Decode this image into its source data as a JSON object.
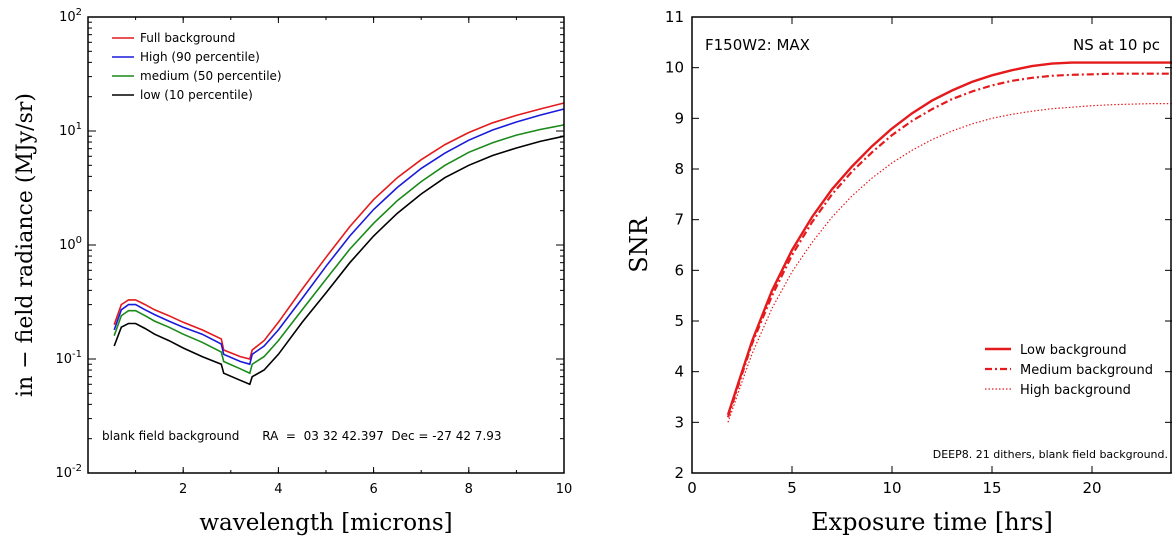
{
  "chart_data": [
    {
      "type": "line",
      "yscale": "log",
      "xlabel": "wavelength [microns]",
      "ylabel": "in − field radiance (MJy/sr)",
      "xlim": [
        0,
        10
      ],
      "ylim": [
        0.01,
        100
      ],
      "xticks": [
        "2",
        "4",
        "6",
        "8",
        "10"
      ],
      "yticks": [
        {
          "base": "10",
          "exp": "-2"
        },
        {
          "base": "10",
          "exp": "-1"
        },
        {
          "base": "10",
          "exp": "0"
        },
        {
          "base": "10",
          "exp": "1"
        },
        {
          "base": "10",
          "exp": "2"
        }
      ],
      "legend_position": "top-left",
      "annotation": "blank field background      RA  =  03 32 42.397  Dec = -27 42 7.93",
      "x": [
        0.55,
        0.7,
        0.85,
        1.0,
        1.2,
        1.4,
        1.7,
        2.0,
        2.4,
        2.8,
        2.85,
        3.2,
        3.4,
        3.45,
        3.7,
        4.0,
        4.5,
        5.0,
        5.5,
        6.0,
        6.5,
        7.0,
        7.5,
        8.0,
        8.5,
        9.0,
        9.5,
        10.0
      ],
      "series": [
        {
          "name": "Full background",
          "color": "#e41a1c",
          "values": [
            0.2,
            0.3,
            0.33,
            0.33,
            0.3,
            0.27,
            0.24,
            0.21,
            0.18,
            0.15,
            0.12,
            0.105,
            0.1,
            0.12,
            0.145,
            0.21,
            0.41,
            0.78,
            1.45,
            2.5,
            3.9,
            5.6,
            7.6,
            9.7,
            11.8,
            13.7,
            15.6,
            17.6
          ]
        },
        {
          "name": "High (90 percentile)",
          "color": "#1a1adb",
          "values": [
            0.18,
            0.27,
            0.3,
            0.3,
            0.27,
            0.245,
            0.215,
            0.19,
            0.165,
            0.135,
            0.11,
            0.095,
            0.09,
            0.11,
            0.13,
            0.18,
            0.34,
            0.65,
            1.2,
            2.05,
            3.2,
            4.7,
            6.4,
            8.3,
            10.2,
            12.0,
            13.8,
            15.6
          ]
        },
        {
          "name": "medium (50 percentile)",
          "color": "#1a8a1a",
          "values": [
            0.16,
            0.24,
            0.265,
            0.265,
            0.24,
            0.215,
            0.19,
            0.165,
            0.14,
            0.115,
            0.095,
            0.082,
            0.075,
            0.09,
            0.105,
            0.145,
            0.27,
            0.5,
            0.92,
            1.55,
            2.45,
            3.6,
            5.0,
            6.5,
            7.9,
            9.2,
            10.3,
            11.3
          ]
        },
        {
          "name": "low (10 percentile)",
          "color": "#000000",
          "values": [
            0.13,
            0.19,
            0.205,
            0.205,
            0.185,
            0.165,
            0.145,
            0.125,
            0.105,
            0.09,
            0.075,
            0.065,
            0.06,
            0.07,
            0.08,
            0.11,
            0.21,
            0.38,
            0.7,
            1.2,
            1.9,
            2.8,
            3.9,
            5.0,
            6.1,
            7.1,
            8.1,
            9.0
          ]
        }
      ]
    },
    {
      "type": "line",
      "xlabel": "Exposure time [hrs]",
      "ylabel": "SNR",
      "xlim": [
        0,
        24
      ],
      "ylim": [
        2,
        11
      ],
      "xticks": [
        "0",
        "5",
        "10",
        "15",
        "20"
      ],
      "yticks": [
        "2",
        "3",
        "4",
        "5",
        "6",
        "7",
        "8",
        "9",
        "10",
        "11"
      ],
      "title_left": "F150W2: MAX",
      "title_right": "NS at 10 pc",
      "annotation": "DEEP8. 21 dithers, blank field background.",
      "legend_position": "bottom-right",
      "x": [
        1.8,
        2.5,
        3,
        4,
        5,
        6,
        7,
        8,
        9,
        10,
        11,
        12,
        13,
        14,
        15,
        16,
        17,
        18,
        19,
        20,
        21,
        22,
        23,
        24
      ],
      "series": [
        {
          "name": "Low background",
          "color": "#e41a1c",
          "dash": "solid",
          "values": [
            3.15,
            4.0,
            4.6,
            5.6,
            6.4,
            7.05,
            7.6,
            8.05,
            8.45,
            8.8,
            9.1,
            9.35,
            9.55,
            9.72,
            9.85,
            9.95,
            10.03,
            10.08,
            10.1,
            10.1,
            10.1,
            10.1,
            10.1,
            10.1
          ]
        },
        {
          "name": "Medium background",
          "color": "#e41a1c",
          "dash": "dashdot",
          "values": [
            3.1,
            3.95,
            4.55,
            5.5,
            6.3,
            6.95,
            7.5,
            7.95,
            8.33,
            8.67,
            8.95,
            9.18,
            9.38,
            9.53,
            9.65,
            9.74,
            9.8,
            9.84,
            9.86,
            9.87,
            9.88,
            9.88,
            9.88,
            9.88
          ]
        },
        {
          "name": "High background",
          "color": "#e41a1c",
          "dash": "dotted",
          "values": [
            3.0,
            3.8,
            4.35,
            5.25,
            5.97,
            6.55,
            7.05,
            7.47,
            7.82,
            8.12,
            8.37,
            8.58,
            8.75,
            8.89,
            9.0,
            9.08,
            9.14,
            9.19,
            9.22,
            9.25,
            9.27,
            9.28,
            9.29,
            9.29
          ]
        }
      ]
    }
  ]
}
